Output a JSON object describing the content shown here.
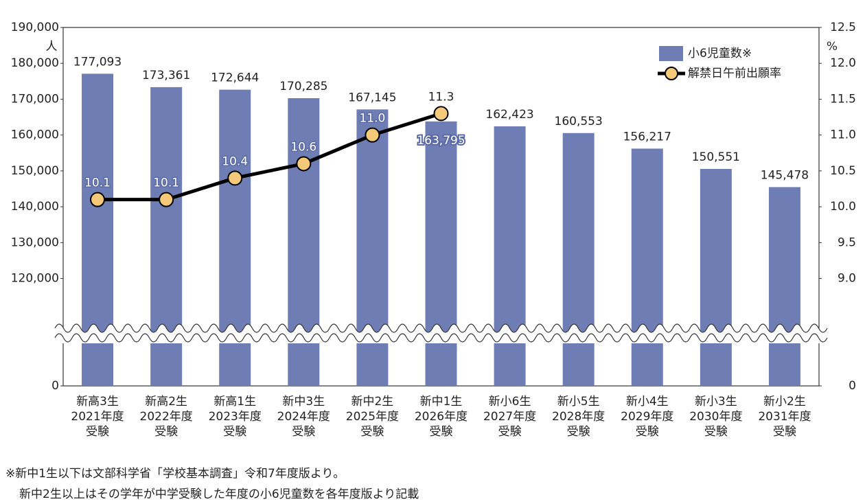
{
  "chart_data": {
    "type": "bar_line",
    "categories": [
      [
        "新高3生",
        "2021年度",
        "受験"
      ],
      [
        "新高2生",
        "2022年度",
        "受験"
      ],
      [
        "新高1生",
        "2023年度",
        "受験"
      ],
      [
        "新中3生",
        "2024年度",
        "受験"
      ],
      [
        "新中2生",
        "2025年度",
        "受験"
      ],
      [
        "新中1生",
        "2026年度",
        "受験"
      ],
      [
        "新小6生",
        "2027年度",
        "受験"
      ],
      [
        "新小5生",
        "2028年度",
        "受験"
      ],
      [
        "新小4生",
        "2029年度",
        "受験"
      ],
      [
        "新小3生",
        "2030年度",
        "受験"
      ],
      [
        "新小2生",
        "2031年度",
        "受験"
      ]
    ],
    "series": [
      {
        "name": "小6児童数※",
        "type": "bar",
        "color": "#6f7db5",
        "values": [
          177093,
          173361,
          172644,
          170285,
          167145,
          163795,
          162423,
          160553,
          156217,
          150551,
          145478
        ],
        "value_labels": [
          "177,093",
          "173,361",
          "172,644",
          "170,285",
          "167,145",
          "163,795",
          "162,423",
          "160,553",
          "156,217",
          "150,551",
          "145,478"
        ]
      },
      {
        "name": "解禁日午前出願率",
        "type": "line",
        "axis": "y2",
        "color": "#000000",
        "marker_color": "#f5c97a",
        "values": [
          10.1,
          10.1,
          10.4,
          10.6,
          11.0,
          11.3,
          null,
          null,
          null,
          null,
          null
        ],
        "value_labels": [
          "10.1",
          "10.1",
          "10.4",
          "10.6",
          "11.0",
          "11.3",
          null,
          null,
          null,
          null,
          null
        ]
      }
    ],
    "ylabel": "人",
    "y2label": "%",
    "ylim": [
      100000,
      190000
    ],
    "yticks": [
      {
        "value": 190000,
        "label": "190,000"
      },
      {
        "value": 180000,
        "label": "180,000"
      },
      {
        "value": 170000,
        "label": "170,000"
      },
      {
        "value": 160000,
        "label": "160,000"
      },
      {
        "value": 150000,
        "label": "150,000"
      },
      {
        "value": 140000,
        "label": "140,000"
      },
      {
        "value": 130000,
        "label": "130,000"
      },
      {
        "value": 120000,
        "label": "120,000"
      },
      0
    ],
    "y2lim": [
      8.0,
      12.5
    ],
    "y2ticks": [
      12.5,
      {
        "value": 12,
        "label": "12.0"
      },
      11.5,
      {
        "value": 11,
        "label": "11.0"
      },
      10.5,
      {
        "value": 10,
        "label": "10.0"
      },
      9.5,
      {
        "value": 9,
        "label": "9.0"
      },
      0
    ],
    "axis_break": true,
    "legend": "top-right",
    "footnote": [
      "※新中1生以下は文部科学省「学校基本調査」令和7年度版より。",
      "新中2生以上はその学年が中学受験した年度の小6児童数を各年度版より記載"
    ]
  }
}
